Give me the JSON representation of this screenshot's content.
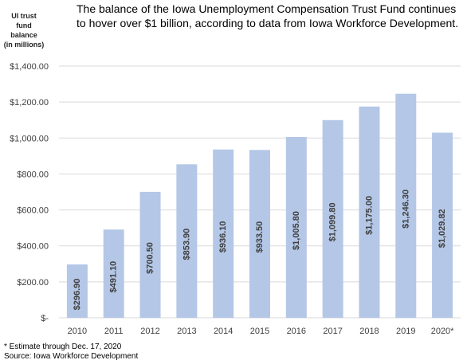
{
  "title_lines": [
    "The balance of the Iowa Unemployment Compensation Trust Fund continues",
    "to hover over $1 billion, according to data from Iowa Workforce Development."
  ],
  "ylabel_lines": [
    "UI trust",
    "fund",
    "balance",
    "(in millions)"
  ],
  "footnote": "* Estimate through Dec. 17, 2020",
  "source": "Source: Iowa Workforce Development",
  "colors": {
    "bar": "#b4c7e7",
    "grid": "#d9d9d9",
    "axis_text": "#404040"
  },
  "chart_data": {
    "type": "bar",
    "title": "The balance of the Iowa Unemployment Compensation Trust Fund continues to hover over $1 billion, according to data from Iowa Workforce Development.",
    "ylabel": "UI trust fund balance (in millions)",
    "xlabel": "",
    "categories": [
      "2010",
      "2011",
      "2012",
      "2013",
      "2014",
      "2015",
      "2016",
      "2017",
      "2018",
      "2019",
      "2020*"
    ],
    "values": [
      296.9,
      491.1,
      700.5,
      853.9,
      936.1,
      933.5,
      1005.8,
      1099.8,
      1175.0,
      1246.3,
      1029.82
    ],
    "value_labels": [
      "$296.90",
      "$491.10",
      "$700.50",
      "$853.90",
      "$936.10",
      "$933.50",
      "$1,005.80",
      "$1,099.80",
      "$1,175.00",
      "$1,246.30",
      "$1,029.82"
    ],
    "ylim": [
      0,
      1400
    ],
    "yticks": [
      0,
      200,
      400,
      600,
      800,
      1000,
      1200,
      1400
    ],
    "ytick_labels": [
      "$-",
      "$200.00",
      "$400.00",
      "$600.00",
      "$800.00",
      "$1,000.00",
      "$1,200.00",
      "$1,400.00"
    ],
    "grid": true,
    "legend": "none"
  }
}
